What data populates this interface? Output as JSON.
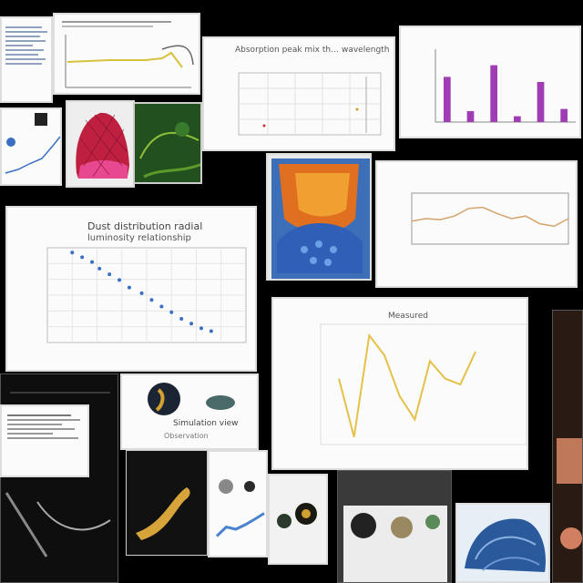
{
  "collage": {
    "cards": {
      "top_center_title": "Absorption peak mix th… wavelength mode",
      "scatter_title": "Dust distribution radial",
      "scatter_subtitle": "luminosity relationship",
      "center_plot_title": "Measured",
      "lower_card_title": "Simulation view",
      "lower_card_subtitle": "Observation"
    }
  },
  "chart_data": [
    {
      "type": "bar",
      "title": "",
      "categories": [
        "1",
        "2",
        "3",
        "4",
        "5",
        "6"
      ],
      "values": [
        0.62,
        0.15,
        0.78,
        0.08,
        0.55,
        0.18
      ],
      "color": "#a03cb4",
      "ylim": [
        0,
        1
      ]
    },
    {
      "type": "line",
      "title": "",
      "x": [
        1,
        2,
        3,
        4,
        5,
        6,
        7,
        8,
        9,
        10,
        11,
        12
      ],
      "y": [
        0.45,
        0.5,
        0.48,
        0.55,
        0.7,
        0.72,
        0.6,
        0.5,
        0.55,
        0.4,
        0.35,
        0.5
      ],
      "color": "#d4a36b",
      "ylim": [
        0,
        1
      ]
    },
    {
      "type": "scatter",
      "title": "Dust distribution radial",
      "x": [
        1,
        1.4,
        1.8,
        2.1,
        2.5,
        2.9,
        3.3,
        3.8,
        4.2,
        4.6,
        5.0,
        5.4,
        5.8,
        6.2,
        6.6
      ],
      "y": [
        0.95,
        0.9,
        0.85,
        0.78,
        0.72,
        0.66,
        0.58,
        0.52,
        0.45,
        0.38,
        0.32,
        0.25,
        0.2,
        0.15,
        0.12
      ],
      "color": "#3a6fc4",
      "xlim": [
        0,
        8
      ],
      "ylim": [
        0,
        1
      ]
    },
    {
      "type": "line",
      "title": "Measured",
      "x": [
        1,
        2,
        3,
        4,
        5,
        6,
        7,
        8,
        9,
        10
      ],
      "y": [
        0.55,
        0.05,
        0.92,
        0.75,
        0.4,
        0.2,
        0.7,
        0.55,
        0.5,
        0.78
      ],
      "color": "#e6c14a",
      "ylim": [
        0,
        1
      ]
    },
    {
      "type": "line",
      "title": "",
      "x": [
        1,
        2,
        3,
        4,
        5,
        6
      ],
      "y": [
        0.35,
        0.55,
        0.5,
        0.6,
        0.72,
        0.85
      ],
      "color": "#4a82cf",
      "ylim": [
        0,
        1
      ]
    }
  ]
}
